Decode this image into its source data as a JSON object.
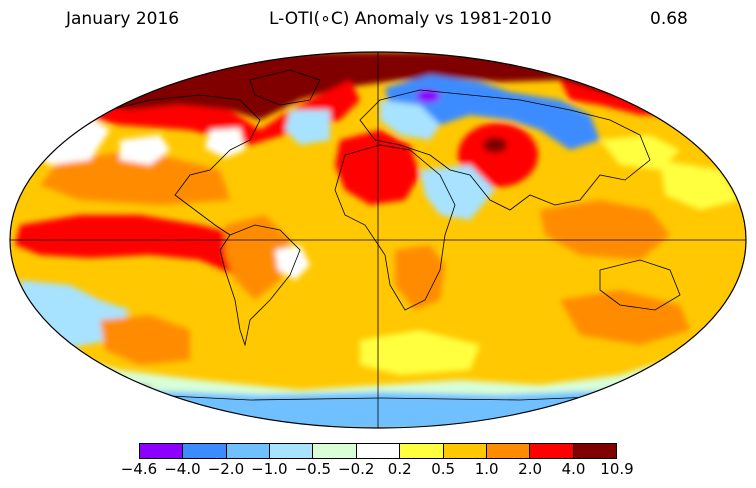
{
  "header": {
    "date": "January 2016",
    "title": "L-OTI(∘C) Anomaly vs 1981-2010",
    "global_mean": "0.68"
  },
  "legend": {
    "ticks": [
      "−4.6",
      "−4.0",
      "−2.0",
      "−1.0",
      "−0.5",
      "−0.2",
      "0.2",
      "0.5",
      "1.0",
      "2.0",
      "4.0",
      "10.9"
    ],
    "colors": [
      "#8b00ff",
      "#3d8cff",
      "#6fc0ff",
      "#a7e2ff",
      "#d8ffd8",
      "#ffffff",
      "#ffff40",
      "#ffc800",
      "#ff8c00",
      "#ff0000",
      "#800000"
    ]
  },
  "colors": {
    "background": "#ffffff",
    "missing": "#a0a0a0",
    "outline": "#000000"
  }
}
